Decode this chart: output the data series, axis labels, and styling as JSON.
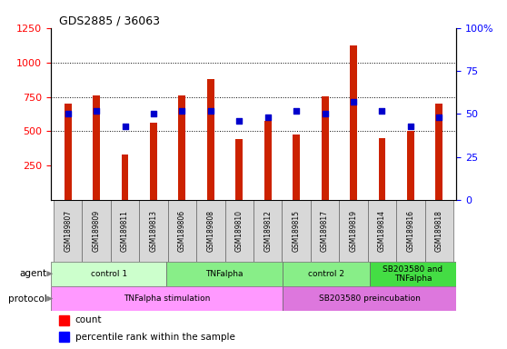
{
  "title": "GDS2885 / 36063",
  "samples": [
    "GSM189807",
    "GSM189809",
    "GSM189811",
    "GSM189813",
    "GSM189806",
    "GSM189808",
    "GSM189810",
    "GSM189812",
    "GSM189815",
    "GSM189817",
    "GSM189819",
    "GSM189814",
    "GSM189816",
    "GSM189818"
  ],
  "counts": [
    700,
    760,
    330,
    565,
    760,
    880,
    445,
    575,
    475,
    755,
    1120,
    450,
    505,
    700
  ],
  "percentiles": [
    50,
    52,
    43,
    50,
    52,
    52,
    46,
    48,
    52,
    50,
    57,
    52,
    43,
    48
  ],
  "ylim_left": [
    0,
    1250
  ],
  "ylim_right": [
    0,
    100
  ],
  "yticks_left": [
    250,
    500,
    750,
    1000,
    1250
  ],
  "yticks_right": [
    0,
    25,
    50,
    75,
    100
  ],
  "bar_color": "#cc2200",
  "dot_color": "#0000cc",
  "agent_groups": [
    {
      "label": "control 1",
      "start": 0,
      "end": 4,
      "color": "#ccffcc"
    },
    {
      "label": "TNFalpha",
      "start": 4,
      "end": 8,
      "color": "#88ee88"
    },
    {
      "label": "control 2",
      "start": 8,
      "end": 11,
      "color": "#88ee88"
    },
    {
      "label": "SB203580 and\nTNFalpha",
      "start": 11,
      "end": 14,
      "color": "#44dd44"
    }
  ],
  "protocol_groups": [
    {
      "label": "TNFalpha stimulation",
      "start": 0,
      "end": 8,
      "color": "#ff99ff"
    },
    {
      "label": "SB203580 preincubation",
      "start": 8,
      "end": 14,
      "color": "#dd77dd"
    }
  ],
  "bar_width": 0.25
}
